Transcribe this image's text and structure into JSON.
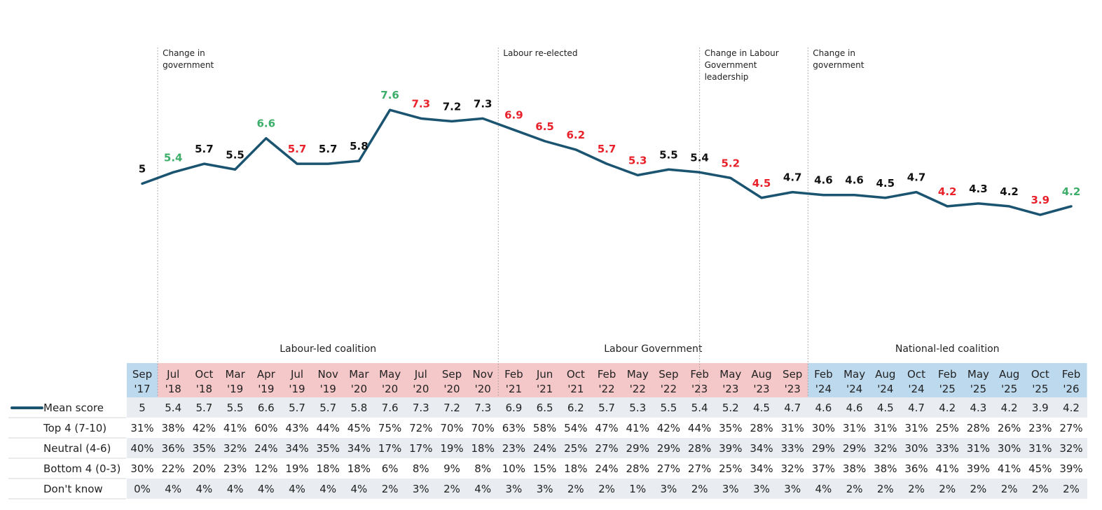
{
  "chart_data": {
    "type": "line",
    "categories": [
      [
        "Sep",
        "'17"
      ],
      [
        "Jul",
        "'18"
      ],
      [
        "Oct",
        "'18"
      ],
      [
        "Mar",
        "'19"
      ],
      [
        "Apr",
        "'19"
      ],
      [
        "Jul",
        "'19"
      ],
      [
        "Nov",
        "'19"
      ],
      [
        "Mar",
        "'20"
      ],
      [
        "May",
        "'20"
      ],
      [
        "Jul",
        "'20"
      ],
      [
        "Sep",
        "'20"
      ],
      [
        "Nov",
        "'20"
      ],
      [
        "Feb",
        "'21"
      ],
      [
        "Jun",
        "'21"
      ],
      [
        "Oct",
        "'21"
      ],
      [
        "Feb",
        "'22"
      ],
      [
        "May",
        "'22"
      ],
      [
        "Sep",
        "'22"
      ],
      [
        "Feb",
        "'23"
      ],
      [
        "May",
        "'23"
      ],
      [
        "Aug",
        "'23"
      ],
      [
        "Sep",
        "'23"
      ],
      [
        "Feb",
        "'24"
      ],
      [
        "May",
        "'24"
      ],
      [
        "Aug",
        "'24"
      ],
      [
        "Oct",
        "'24"
      ],
      [
        "Feb",
        "'25"
      ],
      [
        "May",
        "'25"
      ],
      [
        "Aug",
        "'25"
      ],
      [
        "Oct",
        "'25"
      ],
      [
        "Feb",
        "'26"
      ]
    ],
    "series": [
      {
        "name": "Mean score",
        "values": [
          5,
          5.4,
          5.7,
          5.5,
          6.6,
          5.7,
          5.7,
          5.8,
          7.6,
          7.3,
          7.2,
          7.3,
          6.9,
          6.5,
          6.2,
          5.7,
          5.3,
          5.5,
          5.4,
          5.2,
          4.5,
          4.7,
          4.6,
          4.6,
          4.5,
          4.7,
          4.2,
          4.3,
          4.2,
          3.9,
          4.2
        ],
        "labels": [
          "5",
          "5.4",
          "5.7",
          "5.5",
          "6.6",
          "5.7",
          "5.7",
          "5.8",
          "7.6",
          "7.3",
          "7.2",
          "7.3",
          "6.9",
          "6.5",
          "6.2",
          "5.7",
          "5.3",
          "5.5",
          "5.4",
          "5.2",
          "4.5",
          "4.7",
          "4.6",
          "4.6",
          "4.5",
          "4.7",
          "4.2",
          "4.3",
          "4.2",
          "3.9",
          "4.2"
        ],
        "label_status": [
          "none",
          "up",
          "none",
          "none",
          "up",
          "down",
          "none",
          "none",
          "up",
          "down",
          "none",
          "none",
          "down",
          "down",
          "down",
          "down",
          "down",
          "none",
          "none",
          "down",
          "down",
          "none",
          "none",
          "none",
          "none",
          "none",
          "down",
          "none",
          "none",
          "down",
          "up"
        ]
      }
    ],
    "ylim": [
      0,
      10
    ],
    "annotations": [
      {
        "index": 0.5,
        "lines": [
          "Change in",
          "government"
        ]
      },
      {
        "index": 11.5,
        "lines": [
          "Labour re-elected"
        ]
      },
      {
        "index": 18,
        "lines": [
          "Change in Labour",
          "Government",
          "leadership"
        ]
      },
      {
        "index": 21.5,
        "lines": [
          "Change in",
          "government"
        ]
      }
    ],
    "periods": [
      {
        "label": "Labour-led coalition",
        "from": 1,
        "to": 11,
        "fill": "#f4c7c8"
      },
      {
        "label": "Labour Government",
        "from": 12,
        "to": 21,
        "fill": "#f4c7c8"
      },
      {
        "label": "National-led coalition",
        "from": 22,
        "to": 30,
        "fill": "#bcd9ee"
      }
    ],
    "first_period_fill": "#bcd9ee",
    "table": {
      "legend_label": "Mean score",
      "rows": [
        {
          "label": "Top 4 (7-10)",
          "values": [
            "31%",
            "38%",
            "42%",
            "41%",
            "60%",
            "43%",
            "44%",
            "45%",
            "75%",
            "72%",
            "70%",
            "70%",
            "63%",
            "58%",
            "54%",
            "47%",
            "41%",
            "42%",
            "44%",
            "35%",
            "28%",
            "31%",
            "30%",
            "31%",
            "31%",
            "31%",
            "25%",
            "28%",
            "26%",
            "23%",
            "27%"
          ]
        },
        {
          "label": "Neutral (4-6)",
          "values": [
            "40%",
            "36%",
            "35%",
            "32%",
            "24%",
            "34%",
            "35%",
            "34%",
            "17%",
            "17%",
            "19%",
            "18%",
            "23%",
            "24%",
            "25%",
            "27%",
            "29%",
            "29%",
            "28%",
            "39%",
            "34%",
            "33%",
            "29%",
            "29%",
            "32%",
            "30%",
            "33%",
            "31%",
            "30%",
            "31%",
            "32%"
          ]
        },
        {
          "label": "Bottom 4 (0-3)",
          "values": [
            "30%",
            "22%",
            "20%",
            "23%",
            "12%",
            "19%",
            "18%",
            "18%",
            "6%",
            "8%",
            "9%",
            "8%",
            "10%",
            "15%",
            "18%",
            "24%",
            "28%",
            "27%",
            "27%",
            "25%",
            "34%",
            "32%",
            "37%",
            "38%",
            "38%",
            "36%",
            "41%",
            "39%",
            "41%",
            "45%",
            "39%"
          ]
        },
        {
          "label": "Don't know",
          "values": [
            "0%",
            "4%",
            "4%",
            "4%",
            "4%",
            "4%",
            "4%",
            "4%",
            "2%",
            "3%",
            "2%",
            "4%",
            "3%",
            "3%",
            "2%",
            "2%",
            "1%",
            "3%",
            "2%",
            "3%",
            "3%",
            "3%",
            "4%",
            "2%",
            "2%",
            "2%",
            "2%",
            "2%",
            "2%",
            "2%",
            "2%"
          ]
        }
      ]
    },
    "colors": {
      "line": "#1b5470",
      "up": "#3dae6a",
      "down": "#e8212b",
      "none": "#111111",
      "row_alt": "#e9ecf0",
      "divider": "#999999"
    }
  }
}
